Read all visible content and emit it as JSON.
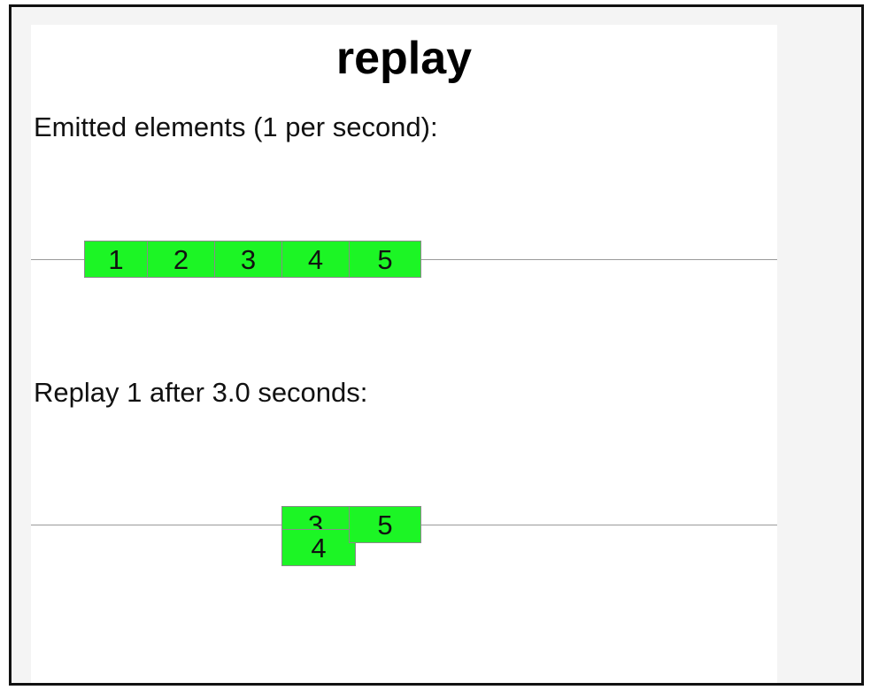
{
  "title": "replay",
  "sections": [
    {
      "label": "Emitted elements (1 per second):",
      "marbles": [
        "1",
        "2",
        "3",
        "4",
        "5"
      ]
    },
    {
      "label": "Replay 1 after 3.0 seconds:",
      "marbles": [
        "3",
        "4",
        "5"
      ]
    }
  ],
  "colors": {
    "marble_fill": "#1cf525",
    "marble_border": "#8a8a8a",
    "timeline": "#9a9a9a"
  }
}
